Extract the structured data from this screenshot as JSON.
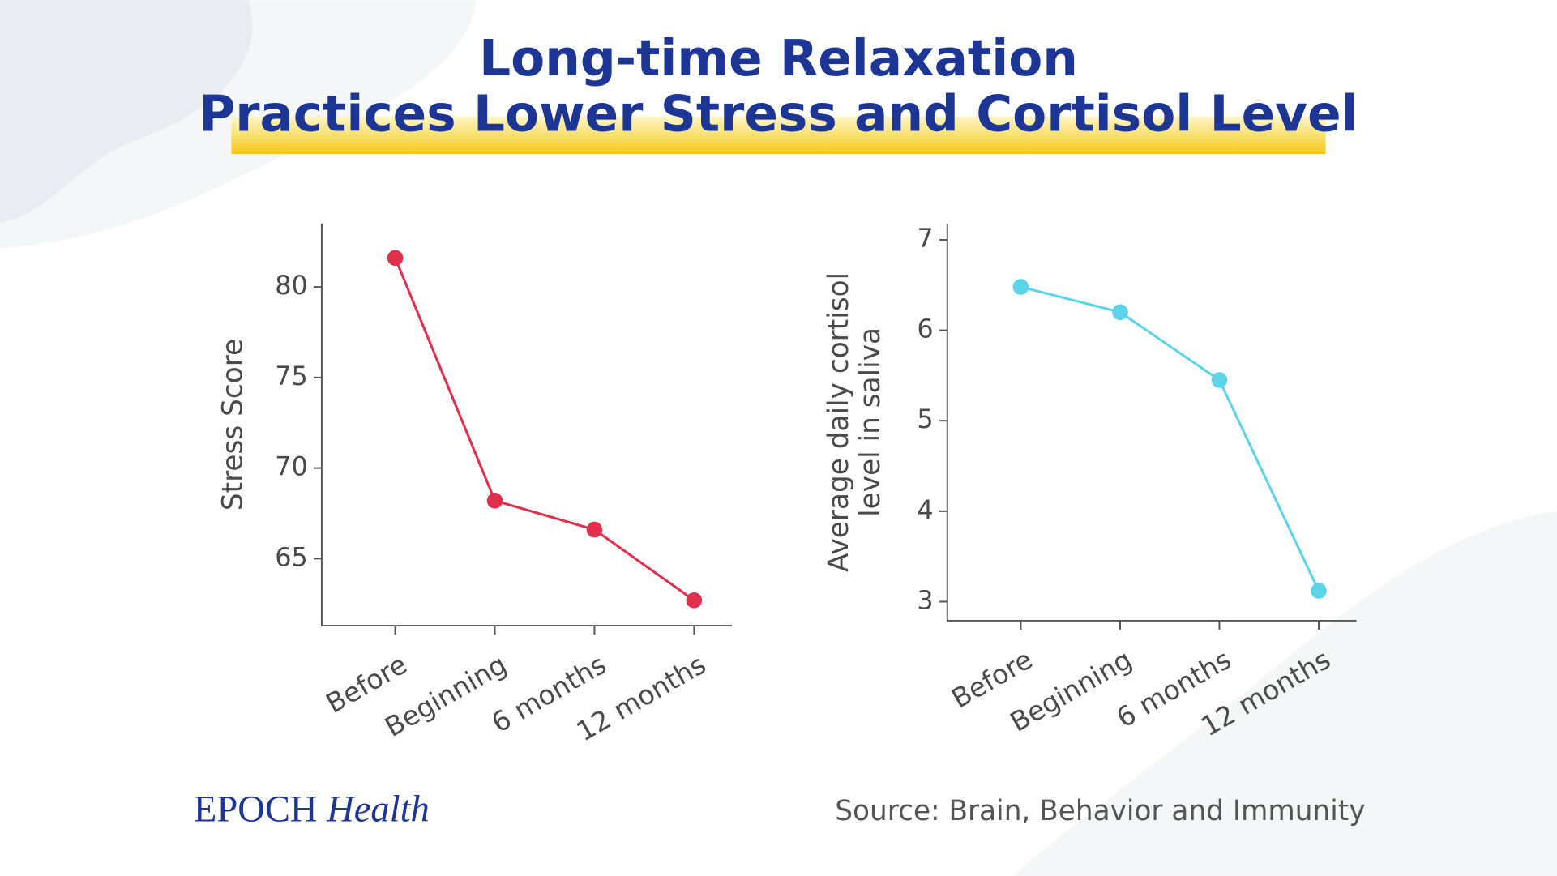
{
  "title": [
    "Long-time Relaxation",
    "Practices Lower Stress and Cortisol Level"
  ],
  "brand": {
    "name": "EPOCH",
    "sub": "Health"
  },
  "source": "Source: Brain, Behavior and Immunity",
  "chart_data": [
    {
      "type": "line",
      "ylabel": [
        "Stress Score"
      ],
      "categories": [
        "Before",
        "Beginning",
        "6 months",
        "12 months"
      ],
      "values": [
        81.6,
        68.2,
        66.6,
        62.7
      ],
      "color": "#e0304e",
      "ylim": [
        61.3,
        83.5
      ],
      "yticks": [
        65,
        70,
        75,
        80
      ]
    },
    {
      "type": "line",
      "ylabel": [
        "Average daily cortisol",
        "level in saliva"
      ],
      "categories": [
        "Before",
        "Beginning",
        "6 months",
        "12 months"
      ],
      "values": [
        6.48,
        6.2,
        5.45,
        3.12
      ],
      "color": "#5dd3e8",
      "ylim": [
        2.79,
        7.18
      ],
      "yticks": [
        3,
        4,
        5,
        6,
        7
      ]
    }
  ]
}
